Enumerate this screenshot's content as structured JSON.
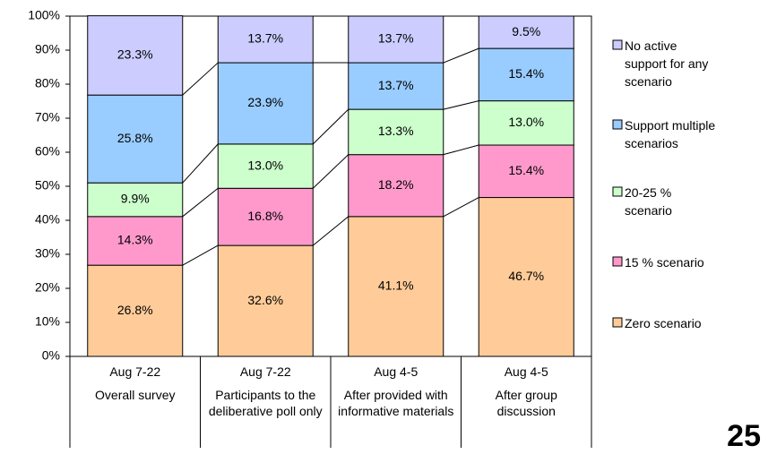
{
  "chart_data": {
    "type": "stacked_bar_100",
    "categories": [
      {
        "date": "Aug 7-22",
        "label": "Overall survey"
      },
      {
        "date": "Aug 7-22",
        "label": "Participants to the deliberative poll only"
      },
      {
        "date": "Aug 4-5",
        "label": "After provided with informative materials"
      },
      {
        "date": "Aug 4-5",
        "label": "After group discussion"
      }
    ],
    "series": [
      {
        "name": "Zero scenario",
        "color": "#FFCC99",
        "values": [
          26.8,
          32.6,
          41.1,
          46.7
        ],
        "value_labels": [
          "26.8%",
          "32.6%",
          "41.1%",
          "46.7%"
        ]
      },
      {
        "name": "15 % scenario",
        "color": "#FF99CC",
        "values": [
          14.3,
          16.8,
          18.2,
          15.4
        ],
        "value_labels": [
          "14.3%",
          "16.8%",
          "18.2%",
          "15.4%"
        ]
      },
      {
        "name": "20-25 % scenario",
        "color": "#CCFFCC",
        "values": [
          9.9,
          13.0,
          13.3,
          13.0
        ],
        "value_labels": [
          "9.9%",
          "13.0%",
          "13.3%",
          "13.0%"
        ]
      },
      {
        "name": "Support multiple scenarios",
        "color": "#99CCFF",
        "values": [
          25.8,
          23.9,
          13.7,
          15.4
        ],
        "value_labels": [
          "25.8%",
          "23.9%",
          "13.7%",
          "15.4%"
        ]
      },
      {
        "name": "No active support for any scenario",
        "color": "#CCCCFF",
        "values": [
          23.3,
          13.7,
          13.7,
          9.5
        ],
        "value_labels": [
          "23.3%",
          "13.7%",
          "13.7%",
          "9.5%"
        ]
      }
    ],
    "ylim": [
      0,
      100
    ],
    "yticks": [
      {
        "value": 0,
        "label": "0%"
      },
      {
        "value": 10,
        "label": "10%"
      },
      {
        "value": 20,
        "label": "20%"
      },
      {
        "value": 30,
        "label": "30%"
      },
      {
        "value": 40,
        "label": "40%"
      },
      {
        "value": 50,
        "label": "50%"
      },
      {
        "value": 60,
        "label": "60%"
      },
      {
        "value": 70,
        "label": "70%"
      },
      {
        "value": 80,
        "label": "80%"
      },
      {
        "value": 90,
        "label": "90%"
      },
      {
        "value": 100,
        "label": "100%"
      }
    ],
    "legend": "right",
    "page_number": "25"
  }
}
